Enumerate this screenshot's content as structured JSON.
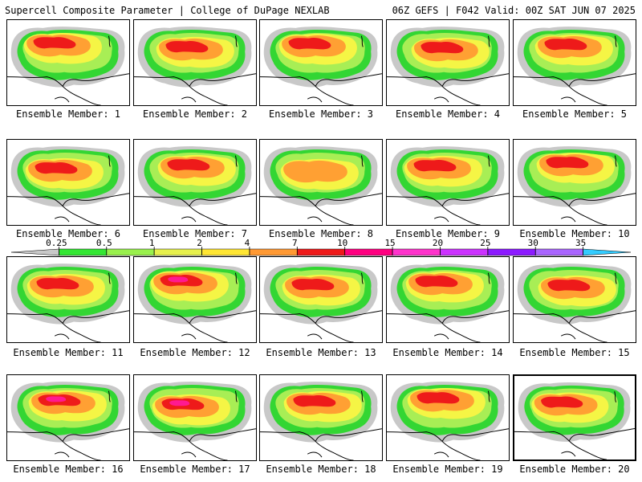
{
  "header": {
    "left_title": "Supercell Composite Parameter | College of DuPage NEXLAB",
    "right_title": "06Z GEFS | F042 Valid: 00Z SAT JUN 07 2025"
  },
  "legend": {
    "tick_labels": [
      "0.25",
      "0.5",
      "1",
      "2",
      "4",
      "7",
      "10",
      "15",
      "20",
      "25",
      "30",
      "35"
    ],
    "bin_colors": [
      "#c8c8c8",
      "#33e633",
      "#99f04d",
      "#e6f04d",
      "#ffe633",
      "#ff9933",
      "#ee1a1a",
      "#ff0080",
      "#ff33cc",
      "#cc33ff",
      "#8c1aff",
      "#aa66ff",
      "#33ccff"
    ]
  },
  "palette": {
    "gray": "#c8c8c8",
    "green": "#33d633",
    "lightgreen": "#a8ee55",
    "yellow": "#f5f545",
    "orange": "#ffa033",
    "red": "#ee1a1a",
    "magenta": "#ff1a90",
    "map_lines": "#000000"
  },
  "panels": [
    {
      "label": "Ensemble Member: 1",
      "intensity": "red"
    },
    {
      "label": "Ensemble Member: 2",
      "intensity": "red"
    },
    {
      "label": "Ensemble Member: 3",
      "intensity": "red"
    },
    {
      "label": "Ensemble Member: 4",
      "intensity": "red"
    },
    {
      "label": "Ensemble Member: 5",
      "intensity": "red"
    },
    {
      "label": "Ensemble Member: 6",
      "intensity": "red"
    },
    {
      "label": "Ensemble Member: 7",
      "intensity": "red"
    },
    {
      "label": "Ensemble Member: 8",
      "intensity": "orange"
    },
    {
      "label": "Ensemble Member: 9",
      "intensity": "red"
    },
    {
      "label": "Ensemble Member: 10",
      "intensity": "red"
    },
    {
      "label": "Ensemble Member: 11",
      "intensity": "red"
    },
    {
      "label": "Ensemble Member: 12",
      "intensity": "magenta"
    },
    {
      "label": "Ensemble Member: 13",
      "intensity": "red"
    },
    {
      "label": "Ensemble Member: 14",
      "intensity": "red"
    },
    {
      "label": "Ensemble Member: 15",
      "intensity": "red"
    },
    {
      "label": "Ensemble Member: 16",
      "intensity": "magenta"
    },
    {
      "label": "Ensemble Member: 17",
      "intensity": "magenta"
    },
    {
      "label": "Ensemble Member: 18",
      "intensity": "red"
    },
    {
      "label": "Ensemble Member: 19",
      "intensity": "red"
    },
    {
      "label": "Ensemble Member: 20",
      "intensity": "red",
      "selected": true
    }
  ]
}
